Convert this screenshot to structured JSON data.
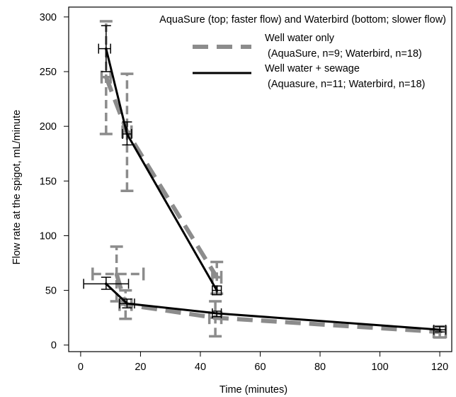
{
  "chart_data": {
    "type": "line",
    "title": "AquaSure (top; faster flow) and Waterbird (bottom; slower flow)",
    "xlabel": "Time (minutes)",
    "ylabel": "Flow rate at the spigot, mL/minute",
    "xlim": [
      -4,
      124
    ],
    "ylim": [
      -6,
      309
    ],
    "xticks": [
      0,
      20,
      40,
      60,
      80,
      100,
      120
    ],
    "yticks": [
      0,
      50,
      100,
      150,
      200,
      250,
      300
    ],
    "grid": false,
    "legend_position": "top-right",
    "series": [
      {
        "name": "Well water only",
        "legend_note": "(AquaSure, n=9; Waterbird, n=18)",
        "style": "dashed",
        "color": "#8c8c8c",
        "groups": [
          {
            "brand": "AquaSure",
            "points": [
              {
                "x": 8.5,
                "y": 245,
                "y_err": [
                  193,
                  296
                ],
                "x_err": [
                  7,
                  10
                ]
              },
              {
                "x": 15.5,
                "y": 195,
                "y_err": [
                  141,
                  248
                ],
                "x_err": [
                  14,
                  17
                ]
              },
              {
                "x": 45.5,
                "y": 62,
                "y_err": [
                  47,
                  76
                ],
                "x_err": [
                  44,
                  47
                ]
              }
            ]
          },
          {
            "brand": "Waterbird",
            "points": [
              {
                "x": 12,
                "y": 65,
                "y_err": [
                  40,
                  90
                ],
                "x_err": [
                  4,
                  21
                ]
              },
              {
                "x": 15,
                "y": 37,
                "y_err": [
                  24,
                  50
                ],
                "x_err": [
                  13,
                  17
                ]
              },
              {
                "x": 45,
                "y": 25,
                "y_err": [
                  8,
                  40
                ],
                "x_err": [
                  43,
                  47
                ]
              },
              {
                "x": 120,
                "y": 12,
                "y_err": [
                  7,
                  17
                ],
                "x_err": [
                  118,
                  122
                ]
              }
            ]
          }
        ]
      },
      {
        "name": "Well water + sewage",
        "legend_note": "(Aquasure, n=11; Waterbird, n=18)",
        "style": "solid",
        "color": "#000000",
        "groups": [
          {
            "brand": "AquaSure",
            "points": [
              {
                "x": 8.5,
                "y": 271,
                "y_err": [
                  250,
                  292
                ],
                "x_err": [
                  6,
                  10
                ]
              },
              {
                "x": 15.5,
                "y": 193,
                "y_err": [
                  183,
                  204
                ],
                "x_err": [
                  14,
                  17
                ]
              },
              {
                "x": 45.5,
                "y": 50,
                "y_err": [
                  46,
                  54
                ],
                "x_err": [
                  44,
                  47
                ]
              }
            ]
          },
          {
            "brand": "Waterbird",
            "points": [
              {
                "x": 8.5,
                "y": 56,
                "y_err": [
                  51,
                  62
                ],
                "x_err": [
                  1,
                  16
                ]
              },
              {
                "x": 15.5,
                "y": 38,
                "y_err": [
                  34,
                  42
                ],
                "x_err": [
                  13,
                  18
                ]
              },
              {
                "x": 45.5,
                "y": 29,
                "y_err": [
                  26,
                  31
                ],
                "x_err": [
                  44,
                  47
                ]
              },
              {
                "x": 120,
                "y": 14,
                "y_err": [
                  12,
                  17
                ],
                "x_err": [
                  118,
                  122
                ]
              }
            ]
          }
        ]
      }
    ]
  }
}
